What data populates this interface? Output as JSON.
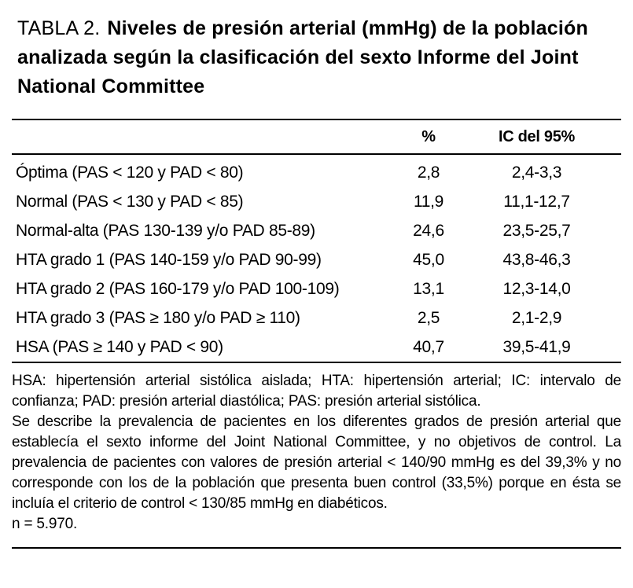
{
  "title": {
    "number": "TABLA 2.",
    "text": "Niveles de presión arterial (mmHg) de la población analizada según la clasificación del sexto Informe del Joint National Committee"
  },
  "table": {
    "col_percent": "%",
    "col_ci": "IC del 95%",
    "rows": [
      {
        "category": "Óptima (PAS < 120 y PAD < 80)",
        "pct": "2,8",
        "ci": "2,4-3,3"
      },
      {
        "category": "Normal (PAS < 130 y PAD < 85)",
        "pct": "11,9",
        "ci": "11,1-12,7"
      },
      {
        "category": "Normal-alta (PAS 130-139 y/o PAD 85-89)",
        "pct": "24,6",
        "ci": "23,5-25,7"
      },
      {
        "category": "HTA grado 1 (PAS 140-159 y/o PAD 90-99)",
        "pct": "45,0",
        "ci": "43,8-46,3"
      },
      {
        "category": "HTA grado 2 (PAS 160-179 y/o PAD 100-109)",
        "pct": "13,1",
        "ci": "12,3-14,0"
      },
      {
        "category": "HTA grado 3 (PAS ≥ 180 y/o PAD ≥ 110)",
        "pct": "2,5",
        "ci": "2,1-2,9"
      },
      {
        "category": "HSA (PAS ≥ 140 y PAD < 90)",
        "pct": "40,7",
        "ci": "39,5-41,9"
      }
    ]
  },
  "footnotes": {
    "abbreviations": "HSA: hipertensión arterial sistólica aislada; HTA: hipertensión arterial; IC: intervalo de confianza; PAD: presión arterial diastólica; PAS: presión arterial sistólica.",
    "description": "Se describe la prevalencia de pacientes en los diferentes grados de presión arterial que establecía el sexto informe del Joint National Committee, y no objetivos de control. La prevalencia de pacientes con valores de presión arterial < 140/90 mmHg es del 39,3% y no corresponde con los de la población que presenta buen control (33,5%) porque en ésta se incluía el criterio de control < 130/85 mmHg en diabéticos.",
    "sample_size": "n = 5.970."
  }
}
